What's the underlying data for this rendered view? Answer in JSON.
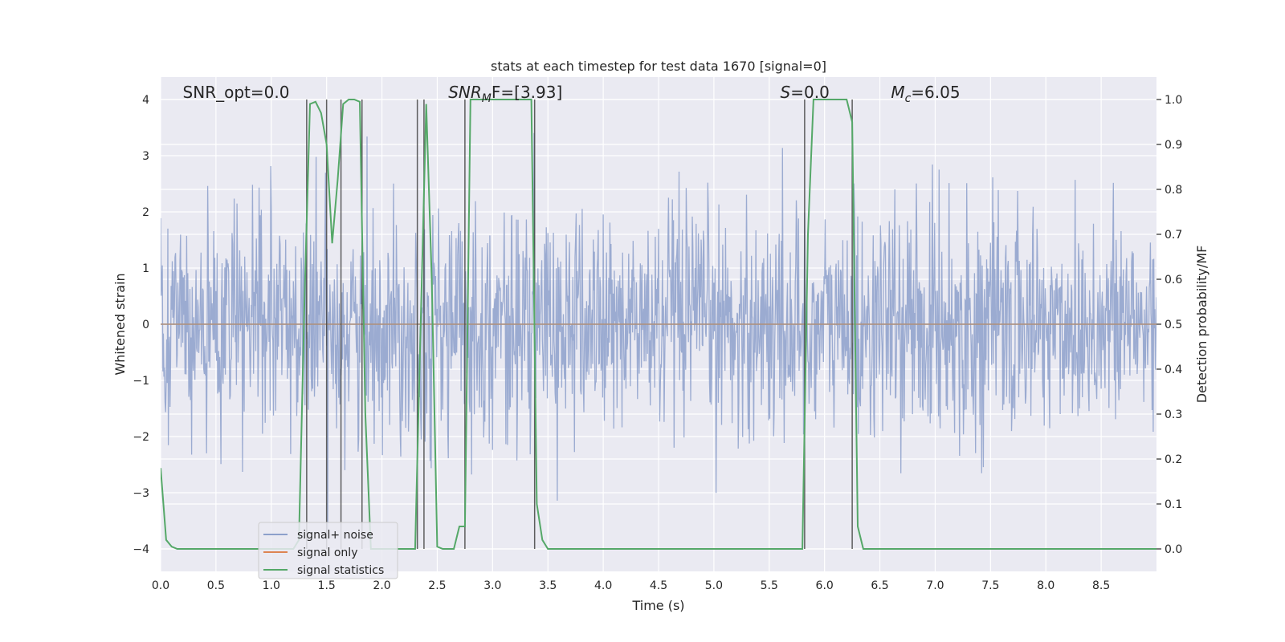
{
  "chart_data": {
    "type": "line",
    "title": "stats at each timestep for test data 1670 [signal=0]",
    "xlabel": "Time (s)",
    "ylabel": "Whitened strain",
    "y2label": "Detection probability/MF",
    "xlim": [
      0,
      9.0
    ],
    "ylim": [
      -4.4,
      4.4
    ],
    "y2lim": [
      -0.05,
      1.05
    ],
    "xticks": [
      "0.0",
      "0.5",
      "1.0",
      "1.5",
      "2.0",
      "2.5",
      "3.0",
      "3.5",
      "4.0",
      "4.5",
      "5.0",
      "5.5",
      "6.0",
      "6.5",
      "7.0",
      "7.5",
      "8.0",
      "8.5"
    ],
    "yticks": [
      "−4",
      "−3",
      "−2",
      "−1",
      "0",
      "1",
      "2",
      "3",
      "4"
    ],
    "y2ticks": [
      "0.0",
      "0.1",
      "0.2",
      "0.3",
      "0.4",
      "0.5",
      "0.6",
      "0.7",
      "0.8",
      "0.9",
      "1.0"
    ],
    "annotations": [
      {
        "prefix": "SNR_opt=0.0",
        "italic": "",
        "sub": "",
        "rest": "",
        "x": 0.2
      },
      {
        "prefix": "",
        "italic": "SNR",
        "sub": "M",
        "rest": "F=[3.93]",
        "x": 2.6
      },
      {
        "prefix": "",
        "italic": "S",
        "sub": "",
        "rest": "=0.0",
        "x": 5.6
      },
      {
        "prefix": "",
        "italic": "M",
        "sub": "c",
        "rest": "=6.05",
        "x": 6.6
      }
    ],
    "grid": true,
    "legend_placement": "lower-left",
    "series": [
      {
        "name": "signal+ noise",
        "color": "#8da0cb",
        "kind": "noise",
        "ampl": 1.0,
        "peak": 3.8,
        "dx": 0.005
      },
      {
        "name": "signal only",
        "color": "#dd8452",
        "kind": "flat",
        "value": 0
      },
      {
        "name": "signal statistics",
        "color": "#55a868",
        "axis": "y2",
        "x": [
          0.0,
          0.05,
          0.1,
          0.15,
          0.2,
          0.3,
          0.4,
          0.5,
          0.6,
          0.7,
          0.8,
          0.9,
          1.0,
          1.1,
          1.2,
          1.25,
          1.3,
          1.35,
          1.4,
          1.45,
          1.5,
          1.55,
          1.6,
          1.65,
          1.7,
          1.75,
          1.8,
          1.85,
          1.9,
          1.95,
          2.0,
          2.05,
          2.1,
          2.15,
          2.2,
          2.25,
          2.3,
          2.35,
          2.4,
          2.45,
          2.5,
          2.55,
          2.6,
          2.65,
          2.7,
          2.75,
          2.8,
          2.85,
          2.9,
          3.0,
          3.1,
          3.2,
          3.3,
          3.35,
          3.4,
          3.45,
          3.5,
          3.6,
          3.7,
          3.8,
          3.9,
          4.0,
          4.5,
          5.0,
          5.5,
          5.8,
          5.85,
          5.9,
          6.0,
          6.1,
          6.2,
          6.25,
          6.3,
          6.35,
          6.4,
          6.5,
          7.0,
          7.5,
          8.0,
          8.5,
          9.0
        ],
        "y": [
          0.18,
          0.02,
          0.005,
          0.0,
          0.0,
          0.0,
          0.0,
          0.0,
          0.0,
          0.0,
          0.0,
          0.0,
          0.0,
          0.0,
          0.0,
          0.02,
          0.55,
          0.99,
          0.995,
          0.97,
          0.9,
          0.68,
          0.82,
          0.99,
          1.0,
          1.0,
          0.995,
          0.3,
          0.0,
          0.0,
          0.0,
          0.0,
          0.0,
          0.0,
          0.0,
          0.0,
          0.0,
          0.5,
          0.99,
          0.6,
          0.005,
          0.0,
          0.0,
          0.0,
          0.05,
          0.05,
          1.0,
          1.0,
          1.0,
          1.0,
          1.0,
          1.0,
          1.0,
          1.0,
          0.1,
          0.02,
          0.0,
          0.0,
          0.0,
          0.0,
          0.0,
          0.0,
          0.0,
          0.0,
          0.0,
          0.0,
          0.7,
          1.0,
          1.0,
          1.0,
          1.0,
          0.95,
          0.05,
          0.0,
          0.0,
          0.0,
          0.0,
          0.0,
          0.0,
          0.0,
          0.0
        ]
      }
    ],
    "vlines": [
      1.32,
      1.5,
      1.63,
      1.82,
      2.32,
      2.38,
      2.75,
      3.38,
      5.82,
      6.25
    ]
  }
}
